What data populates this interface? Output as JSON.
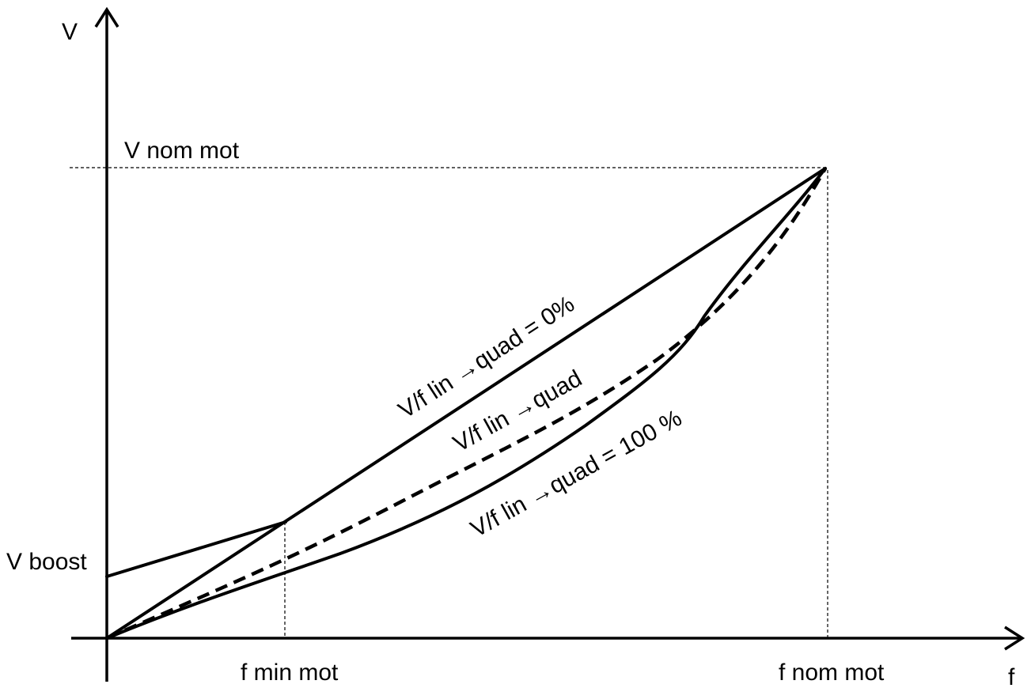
{
  "axes": {
    "y_label": "V",
    "x_label": "f"
  },
  "markers": {
    "v_nom_mot": "V nom mot",
    "v_boost": "V boost",
    "f_min_mot": "f min mot",
    "f_nom_mot": "f nom mot"
  },
  "curves": {
    "linear": {
      "label_prefix": "V/f lin ",
      "label_arrow": "→",
      "label_suffix": "quad = 0%",
      "style": "solid"
    },
    "intermediate": {
      "label_prefix": "V/f lin ",
      "label_arrow": "→",
      "label_suffix": "quad",
      "style": "dashed"
    },
    "quadratic": {
      "label_prefix": "V/f lin ",
      "label_arrow": "→",
      "label_suffix": "quad = 100 %",
      "style": "solid"
    }
  },
  "colors": {
    "line": "#000000",
    "background": "#ffffff"
  }
}
